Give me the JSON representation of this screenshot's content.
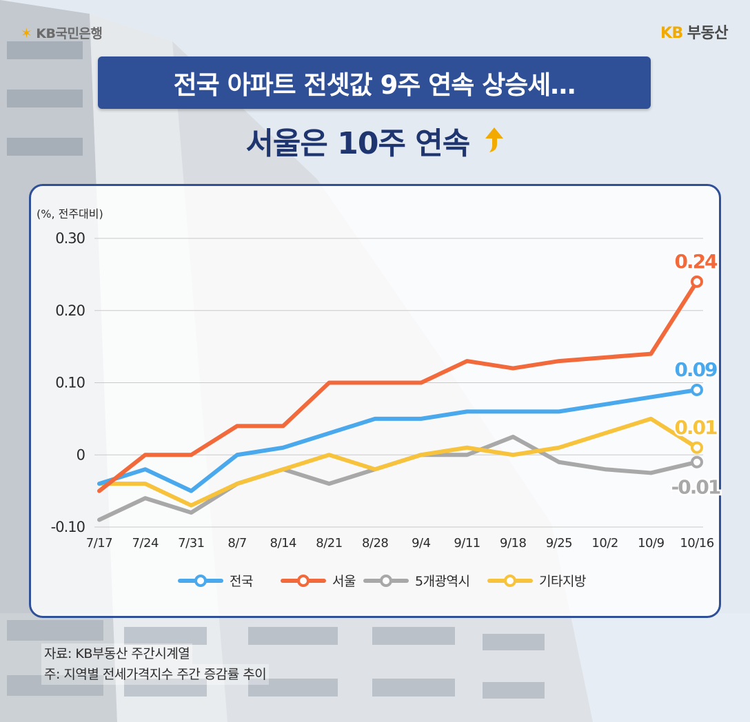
{
  "brand": {
    "left_logo": "KB국민은행",
    "right_logo_kb": "KB",
    "right_logo_text": "부동산"
  },
  "header": {
    "title": "전국 아파트 전셋값 9주 연속 상승세…",
    "subtitle": "서울은 10주 연속"
  },
  "colors": {
    "title_bg": "#2f4f97",
    "accent": "#f2a900",
    "nationwide": "#4aa8ec",
    "seoul": "#f26a3b",
    "metro": "#a8a8a8",
    "other": "#f7c33c"
  },
  "chart_data": {
    "type": "line",
    "ylabel": "(%, 전주대비)",
    "ylim": [
      -0.1,
      0.3
    ],
    "yticks": [
      0.3,
      0.2,
      0.1,
      0,
      -0.1
    ],
    "ytick_labels": [
      "0.30",
      "0.20",
      "0.10",
      "0",
      "-0.10"
    ],
    "categories": [
      "7/17",
      "7/24",
      "7/31",
      "8/7",
      "8/14",
      "8/21",
      "8/28",
      "9/4",
      "9/11",
      "9/18",
      "9/25",
      "10/2",
      "10/9",
      "10/16"
    ],
    "grid": true,
    "legend_position": "bottom",
    "series": [
      {
        "name": "전국",
        "color": "#4aa8ec",
        "values": [
          -0.04,
          -0.02,
          -0.05,
          0.0,
          0.01,
          0.03,
          0.05,
          0.05,
          0.06,
          0.06,
          0.06,
          0.07,
          0.08,
          0.09
        ],
        "end_label": "0.09"
      },
      {
        "name": "서울",
        "color": "#f26a3b",
        "values": [
          -0.05,
          0.0,
          0.0,
          0.04,
          0.04,
          0.1,
          0.1,
          0.1,
          0.13,
          0.12,
          0.13,
          0.135,
          0.14,
          0.24
        ],
        "end_label": "0.24"
      },
      {
        "name": "5개광역시",
        "color": "#a8a8a8",
        "values": [
          -0.09,
          -0.06,
          -0.08,
          -0.04,
          -0.02,
          -0.04,
          -0.02,
          0.0,
          0.0,
          0.025,
          -0.01,
          -0.02,
          -0.025,
          -0.01
        ],
        "end_label": "-0.01"
      },
      {
        "name": "기타지방",
        "color": "#f7c33c",
        "values": [
          -0.04,
          -0.04,
          -0.07,
          -0.04,
          -0.02,
          0.0,
          -0.02,
          0.0,
          0.01,
          0.0,
          0.01,
          0.03,
          0.05,
          0.01
        ],
        "end_label": "0.01"
      }
    ]
  },
  "footer": {
    "source": "자료: KB부동산 주간시계열",
    "note": "주: 지역별 전세가격지수 주간 증감률 추이"
  }
}
